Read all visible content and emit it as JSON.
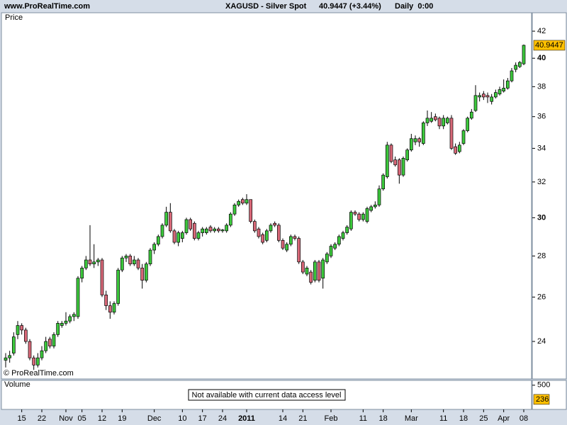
{
  "header": {
    "site": "www.ProRealTime.com",
    "title": "XAGUSD - Silver Spot",
    "quote": "40.9447 (+3.44%)",
    "period": "Daily  0:00"
  },
  "chart_data": [
    {
      "type": "candlestick",
      "label": "Price",
      "copyright": "© ProRealTime.com",
      "log_scale": true,
      "up_color": "#3cc83c",
      "down_color": "#d86878",
      "last_color": "#ffc000",
      "ylim": [
        22.43,
        43.42
      ],
      "yticks": [
        24,
        26,
        28,
        30,
        32,
        34,
        36,
        38,
        40,
        42
      ],
      "categories": [
        null,
        null,
        null,
        null,
        "15",
        null,
        null,
        null,
        null,
        "22",
        null,
        null,
        null,
        null,
        null,
        "Nov",
        null,
        null,
        null,
        "05",
        null,
        null,
        null,
        null,
        "12",
        null,
        null,
        null,
        null,
        "19",
        null,
        null,
        null,
        null,
        null,
        null,
        null,
        "Dec",
        null,
        null,
        null,
        null,
        null,
        null,
        "10",
        null,
        null,
        null,
        null,
        "17",
        null,
        null,
        null,
        null,
        "24",
        null,
        null,
        null,
        null,
        null,
        "2011",
        null,
        null,
        null,
        null,
        null,
        null,
        null,
        null,
        "14",
        null,
        null,
        null,
        null,
        "21",
        null,
        null,
        null,
        null,
        null,
        null,
        "Feb",
        null,
        null,
        null,
        null,
        null,
        null,
        null,
        "11",
        null,
        null,
        null,
        null,
        "18",
        null,
        null,
        null,
        null,
        null,
        null,
        "Mar",
        null,
        null,
        null,
        null,
        null,
        null,
        null,
        "11",
        null,
        null,
        null,
        null,
        "18",
        null,
        null,
        null,
        null,
        "25",
        null,
        null,
        null,
        null,
        "Apr",
        null,
        null,
        null,
        null,
        "08"
      ],
      "open": [
        23.2,
        23.3,
        23.5,
        24.3,
        24.7,
        24.5,
        24.0,
        23.3,
        23.0,
        23.3,
        23.6,
        24.1,
        23.8,
        24.3,
        24.7,
        24.8,
        24.9,
        25.1,
        25.1,
        26.9,
        27.4,
        27.8,
        27.6,
        27.7,
        27.8,
        26.1,
        25.6,
        25.3,
        25.7,
        27.3,
        27.9,
        28.0,
        27.6,
        27.8,
        27.4,
        26.8,
        27.6,
        28.3,
        28.6,
        29.0,
        29.6,
        30.3,
        29.3,
        28.7,
        28.9,
        29.2,
        29.9,
        29.7,
        28.9,
        29.2,
        29.2,
        29.5,
        29.3,
        29.4,
        29.3,
        29.3,
        29.6,
        30.2,
        30.7,
        31.0,
        30.8,
        31.0,
        29.8,
        29.4,
        29.1,
        28.8,
        29.3,
        29.7,
        29.6,
        28.8,
        28.3,
        28.6,
        29.0,
        28.9,
        27.7,
        27.1,
        27.2,
        26.8,
        27.7,
        26.9,
        27.7,
        28.0,
        28.4,
        28.6,
        28.9,
        29.2,
        29.4,
        30.3,
        30.2,
        29.9,
        29.8,
        30.4,
        30.6,
        30.7,
        31.6,
        32.3,
        34.2,
        33.3,
        33.3,
        32.4,
        33.3,
        33.9,
        34.4,
        34.6,
        34.3,
        35.6,
        35.7,
        36.0,
        35.9,
        35.4,
        35.6,
        35.9,
        34.1,
        33.8,
        34.3,
        35.1,
        35.9,
        36.4,
        37.3,
        37.5,
        37.4,
        37.0,
        37.3,
        37.5,
        37.7,
        37.9,
        38.4,
        39.2,
        39.4,
        39.6
      ],
      "high": [
        23.5,
        23.6,
        24.4,
        24.9,
        24.8,
        24.6,
        24.1,
        23.4,
        23.5,
        23.8,
        24.2,
        24.2,
        24.4,
        24.9,
        24.9,
        25.3,
        25.2,
        25.3,
        27.0,
        27.5,
        28.0,
        29.6,
        28.6,
        27.9,
        27.9,
        26.3,
        25.8,
        25.8,
        27.4,
        28.0,
        28.1,
        28.1,
        28.0,
        27.9,
        27.6,
        27.7,
        28.4,
        28.7,
        29.1,
        29.7,
        30.6,
        30.8,
        29.4,
        29.3,
        29.3,
        30.0,
        30.0,
        29.8,
        29.3,
        29.5,
        29.5,
        29.6,
        29.5,
        29.5,
        29.4,
        29.7,
        30.3,
        30.8,
        31.0,
        31.1,
        31.3,
        31.0,
        29.9,
        29.5,
        29.2,
        29.4,
        29.7,
        29.8,
        29.7,
        28.9,
        28.7,
        29.1,
        29.1,
        29.0,
        27.8,
        27.5,
        27.3,
        27.8,
        27.8,
        27.9,
        28.2,
        28.6,
        28.7,
        29.1,
        29.3,
        29.6,
        30.4,
        30.4,
        30.3,
        30.3,
        30.6,
        30.7,
        30.9,
        31.8,
        32.5,
        34.4,
        34.3,
        33.5,
        33.4,
        33.5,
        34.0,
        34.9,
        34.8,
        34.7,
        35.7,
        36.4,
        36.3,
        36.2,
        36.0,
        36.1,
        36.0,
        36.1,
        34.3,
        34.4,
        35.2,
        36.0,
        36.5,
        38.1,
        37.6,
        37.7,
        37.6,
        37.5,
        37.8,
        38.0,
        38.5,
        38.6,
        39.3,
        39.7,
        39.8,
        41.0
      ],
      "low": [
        22.9,
        23.1,
        23.4,
        24.1,
        24.3,
        23.9,
        23.2,
        22.8,
        22.9,
        23.2,
        23.5,
        23.7,
        23.7,
        24.2,
        24.6,
        24.7,
        24.8,
        24.9,
        25.0,
        26.7,
        27.3,
        27.5,
        27.4,
        27.5,
        26.0,
        25.4,
        25.0,
        25.2,
        25.6,
        27.2,
        27.7,
        27.5,
        27.5,
        27.3,
        26.4,
        26.7,
        27.5,
        28.1,
        28.5,
        28.9,
        29.5,
        29.2,
        28.6,
        28.5,
        28.7,
        29.1,
        29.3,
        28.8,
        28.8,
        29.0,
        29.1,
        29.2,
        29.2,
        29.2,
        29.2,
        29.2,
        29.5,
        30.1,
        30.6,
        30.7,
        30.7,
        29.7,
        29.2,
        28.9,
        28.6,
        28.7,
        29.2,
        29.5,
        28.7,
        28.3,
        28.2,
        28.5,
        28.8,
        27.6,
        27.1,
        27.0,
        26.6,
        26.7,
        26.7,
        26.4,
        27.6,
        27.9,
        28.3,
        28.5,
        28.8,
        29.1,
        29.3,
        30.1,
        29.8,
        29.8,
        29.7,
        30.3,
        30.5,
        30.6,
        31.5,
        32.2,
        33.1,
        32.9,
        31.9,
        32.3,
        33.2,
        33.8,
        34.2,
        34.1,
        34.2,
        35.4,
        35.6,
        35.7,
        35.2,
        35.2,
        35.5,
        33.9,
        33.6,
        33.7,
        34.2,
        35.0,
        35.8,
        36.3,
        37.0,
        37.1,
        36.9,
        36.8,
        37.2,
        37.4,
        37.6,
        37.8,
        38.3,
        39.0,
        39.3,
        39.5
      ],
      "close": [
        23.3,
        23.4,
        24.2,
        24.7,
        24.5,
        24.0,
        23.3,
        23.0,
        23.3,
        23.6,
        24.0,
        23.8,
        24.3,
        24.8,
        24.8,
        24.9,
        25.1,
        25.2,
        26.9,
        27.4,
        27.8,
        27.6,
        27.7,
        27.8,
        26.1,
        25.6,
        25.3,
        25.7,
        27.3,
        27.9,
        28.0,
        27.6,
        27.8,
        27.4,
        26.8,
        27.6,
        28.3,
        28.6,
        29.0,
        29.6,
        30.3,
        29.3,
        28.7,
        29.2,
        29.2,
        29.9,
        29.4,
        28.9,
        29.2,
        29.4,
        29.4,
        29.3,
        29.4,
        29.3,
        29.35,
        29.6,
        30.2,
        30.7,
        30.9,
        30.8,
        31.0,
        29.8,
        29.3,
        29.0,
        28.7,
        29.3,
        29.6,
        29.6,
        28.8,
        28.4,
        28.6,
        29.0,
        28.9,
        27.7,
        27.2,
        27.4,
        26.7,
        27.7,
        26.8,
        27.8,
        28.1,
        28.5,
        28.6,
        29.0,
        29.2,
        29.5,
        30.3,
        30.2,
        29.9,
        30.2,
        30.5,
        30.6,
        30.7,
        31.6,
        32.4,
        34.2,
        33.2,
        33.0,
        32.4,
        33.4,
        33.9,
        34.6,
        34.6,
        34.4,
        35.6,
        35.9,
        35.9,
        35.8,
        35.4,
        35.9,
        35.9,
        34.0,
        33.7,
        34.2,
        35.1,
        35.9,
        36.3,
        37.4,
        37.4,
        37.3,
        37.3,
        37.3,
        37.6,
        37.8,
        37.9,
        38.4,
        39.1,
        39.5,
        39.7,
        40.9447
      ]
    },
    {
      "type": "volume",
      "label": "Volume",
      "label_color": "#33cc33",
      "note": "Not available with current data access level",
      "ylim": [
        50,
        590
      ],
      "yticks": [
        500
      ],
      "value": 236,
      "value_color": "#ffc000"
    }
  ]
}
